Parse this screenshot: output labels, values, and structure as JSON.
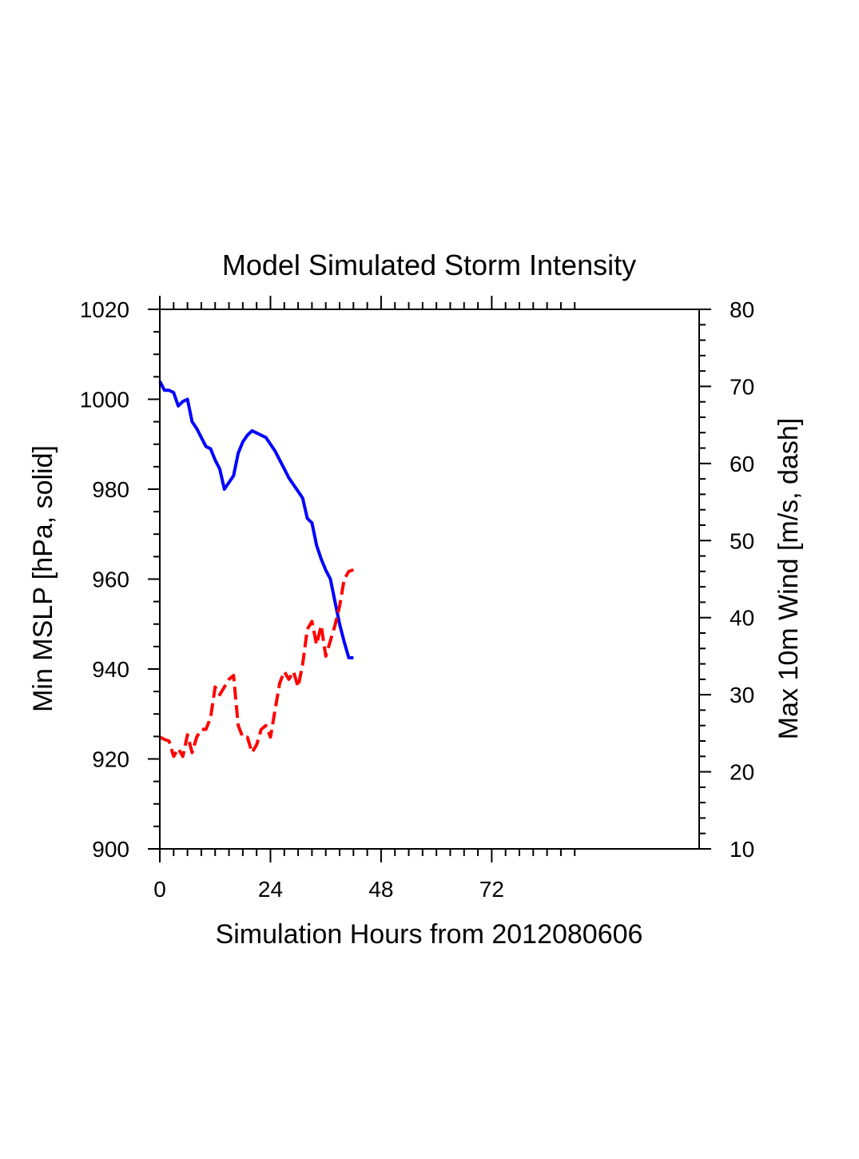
{
  "chart_data": {
    "type": "line",
    "title": "Model Simulated Storm Intensity",
    "xlabel": "Simulation Hours from 2012080606",
    "ylabel_left": "Min MSLP  [hPa, solid]",
    "ylabel_right": "Max 10m Wind  [m/s, dash]",
    "xlim": [
      0,
      117
    ],
    "ylim_left": [
      900,
      1020
    ],
    "ylim_right": [
      10,
      80
    ],
    "x_ticks": [
      0,
      24,
      48,
      72
    ],
    "x_tick_labels": [
      "0",
      "24",
      "48",
      "72"
    ],
    "y_left_ticks": [
      900,
      920,
      940,
      960,
      980,
      1000,
      1020
    ],
    "y_left_tick_labels": [
      "900",
      "920",
      "940",
      "960",
      "980",
      "1000",
      "1020"
    ],
    "y_right_ticks": [
      10,
      20,
      30,
      40,
      50,
      60,
      70,
      80
    ],
    "y_right_tick_labels": [
      "10",
      "20",
      "30",
      "40",
      "50",
      "60",
      "70",
      "80"
    ],
    "grid": false,
    "series": [
      {
        "name": "Min MSLP",
        "axis": "left",
        "style": "solid",
        "color": "#0000ff",
        "x": [
          0,
          1,
          2,
          3,
          4,
          5,
          6,
          7,
          8,
          9,
          10,
          11,
          12,
          13,
          14,
          15,
          16,
          17,
          18,
          19,
          20,
          21,
          22,
          23,
          24,
          25,
          26,
          27,
          28,
          29,
          30,
          31,
          32,
          33,
          34,
          35,
          36,
          37,
          38,
          39,
          40,
          41,
          42
        ],
        "values": [
          1004,
          1002,
          1002,
          1001.5,
          998.5,
          999.5,
          1000,
          995,
          993.5,
          991.5,
          989.5,
          989,
          986.5,
          984.5,
          980,
          981.5,
          983,
          988,
          990.5,
          992,
          993,
          992.5,
          992,
          991.5,
          990,
          988.5,
          986.5,
          984.5,
          982.5,
          981,
          979.5,
          978,
          973.5,
          972.5,
          967.5,
          964.5,
          962,
          960,
          955,
          950,
          946,
          942.5,
          942.5
        ]
      },
      {
        "name": "Max 10m Wind",
        "axis": "right",
        "style": "dash",
        "color": "#ff0000",
        "x": [
          0,
          1,
          2,
          3,
          4,
          5,
          6,
          7,
          8,
          9,
          10,
          11,
          12,
          13,
          14,
          15,
          16,
          17,
          18,
          19,
          20,
          21,
          22,
          23,
          24,
          25,
          26,
          27,
          28,
          29,
          30,
          31,
          32,
          33,
          34,
          35,
          36,
          37,
          38,
          39,
          40,
          41,
          42
        ],
        "values": [
          24.5,
          24.2,
          24,
          22,
          23,
          22,
          24.8,
          22.5,
          24.5,
          25.5,
          25.5,
          27,
          31,
          30,
          31,
          32,
          32.5,
          26,
          24.5,
          24.5,
          22.5,
          23.5,
          25.5,
          26,
          24.5,
          28,
          31.5,
          33,
          32,
          33,
          31,
          34,
          38.5,
          39.5,
          36.5,
          39,
          35,
          37,
          39,
          41.5,
          45,
          46,
          46.2
        ]
      }
    ]
  }
}
